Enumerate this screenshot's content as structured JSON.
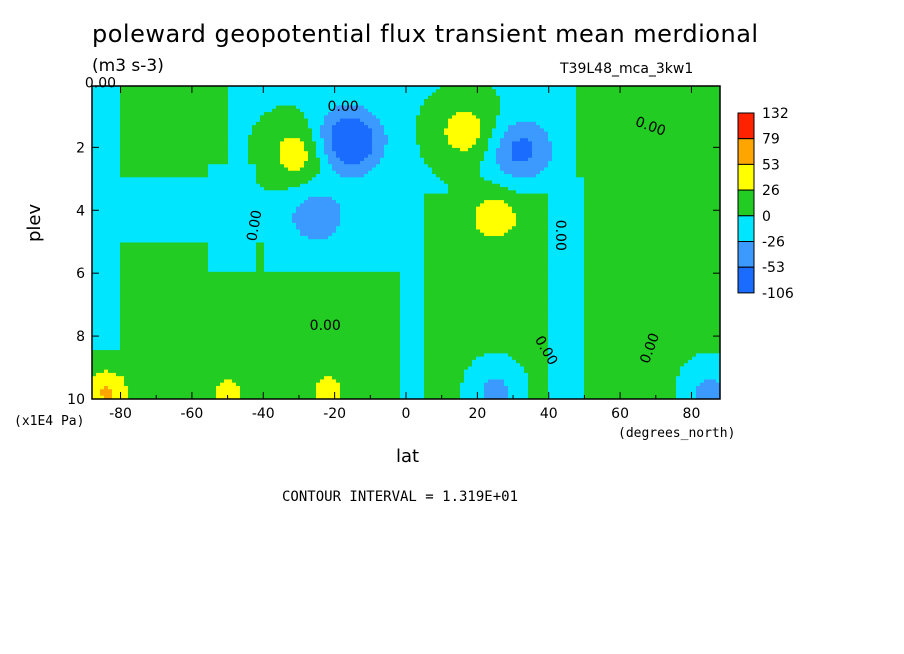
{
  "chart_data": {
    "type": "heatmap",
    "title": "poleward geopotential flux transient mean merdional",
    "units": "(m3 s-3)",
    "run_label": "T39L48_mca_3kw1",
    "xlabel": "lat",
    "ylabel": "plev",
    "x_unit": "(degrees_north)",
    "y_unit": "(x1E4 Pa)",
    "xlim": [
      -88,
      88
    ],
    "ylim": [
      10,
      0.05
    ],
    "x_ticks": [
      -80,
      -60,
      -40,
      -20,
      0,
      20,
      40,
      60,
      80
    ],
    "y_ticks": [
      2,
      4,
      6,
      8,
      10
    ],
    "contour_interval_label": "CONTOUR INTERVAL = 1.319E+01",
    "contour_labels": [
      "0.00"
    ],
    "legend": {
      "placement": "right",
      "levels": [
        -106,
        -53,
        -26,
        0,
        26,
        53,
        79,
        132
      ],
      "colors": [
        "#1a6cff",
        "#3c9aff",
        "#00e6ff",
        "#22cc22",
        "#ffff00",
        "#ffa500",
        "#ff2200"
      ]
    },
    "features": [
      {
        "kind": "max",
        "lat": -30,
        "plev": 2.2,
        "value": 45
      },
      {
        "kind": "min",
        "lat": -16,
        "plev": 1.8,
        "value": -90
      },
      {
        "kind": "max",
        "lat": 17,
        "plev": 1.5,
        "value": 45
      },
      {
        "kind": "min",
        "lat": 32,
        "plev": 2.1,
        "value": -60
      },
      {
        "kind": "min",
        "lat": -25,
        "plev": 4.2,
        "value": -40
      },
      {
        "kind": "max",
        "lat": 25,
        "plev": 4.2,
        "value": 35
      },
      {
        "kind": "max",
        "lat": -84,
        "plev": 9.8,
        "value": 60
      },
      {
        "kind": "max",
        "lat": -50,
        "plev": 9.9,
        "value": 35
      },
      {
        "kind": "max",
        "lat": -22,
        "plev": 9.8,
        "value": 35
      },
      {
        "kind": "min",
        "lat": 25,
        "plev": 9.8,
        "value": -40
      },
      {
        "kind": "min",
        "lat": 85,
        "plev": 9.8,
        "value": -40
      }
    ]
  }
}
